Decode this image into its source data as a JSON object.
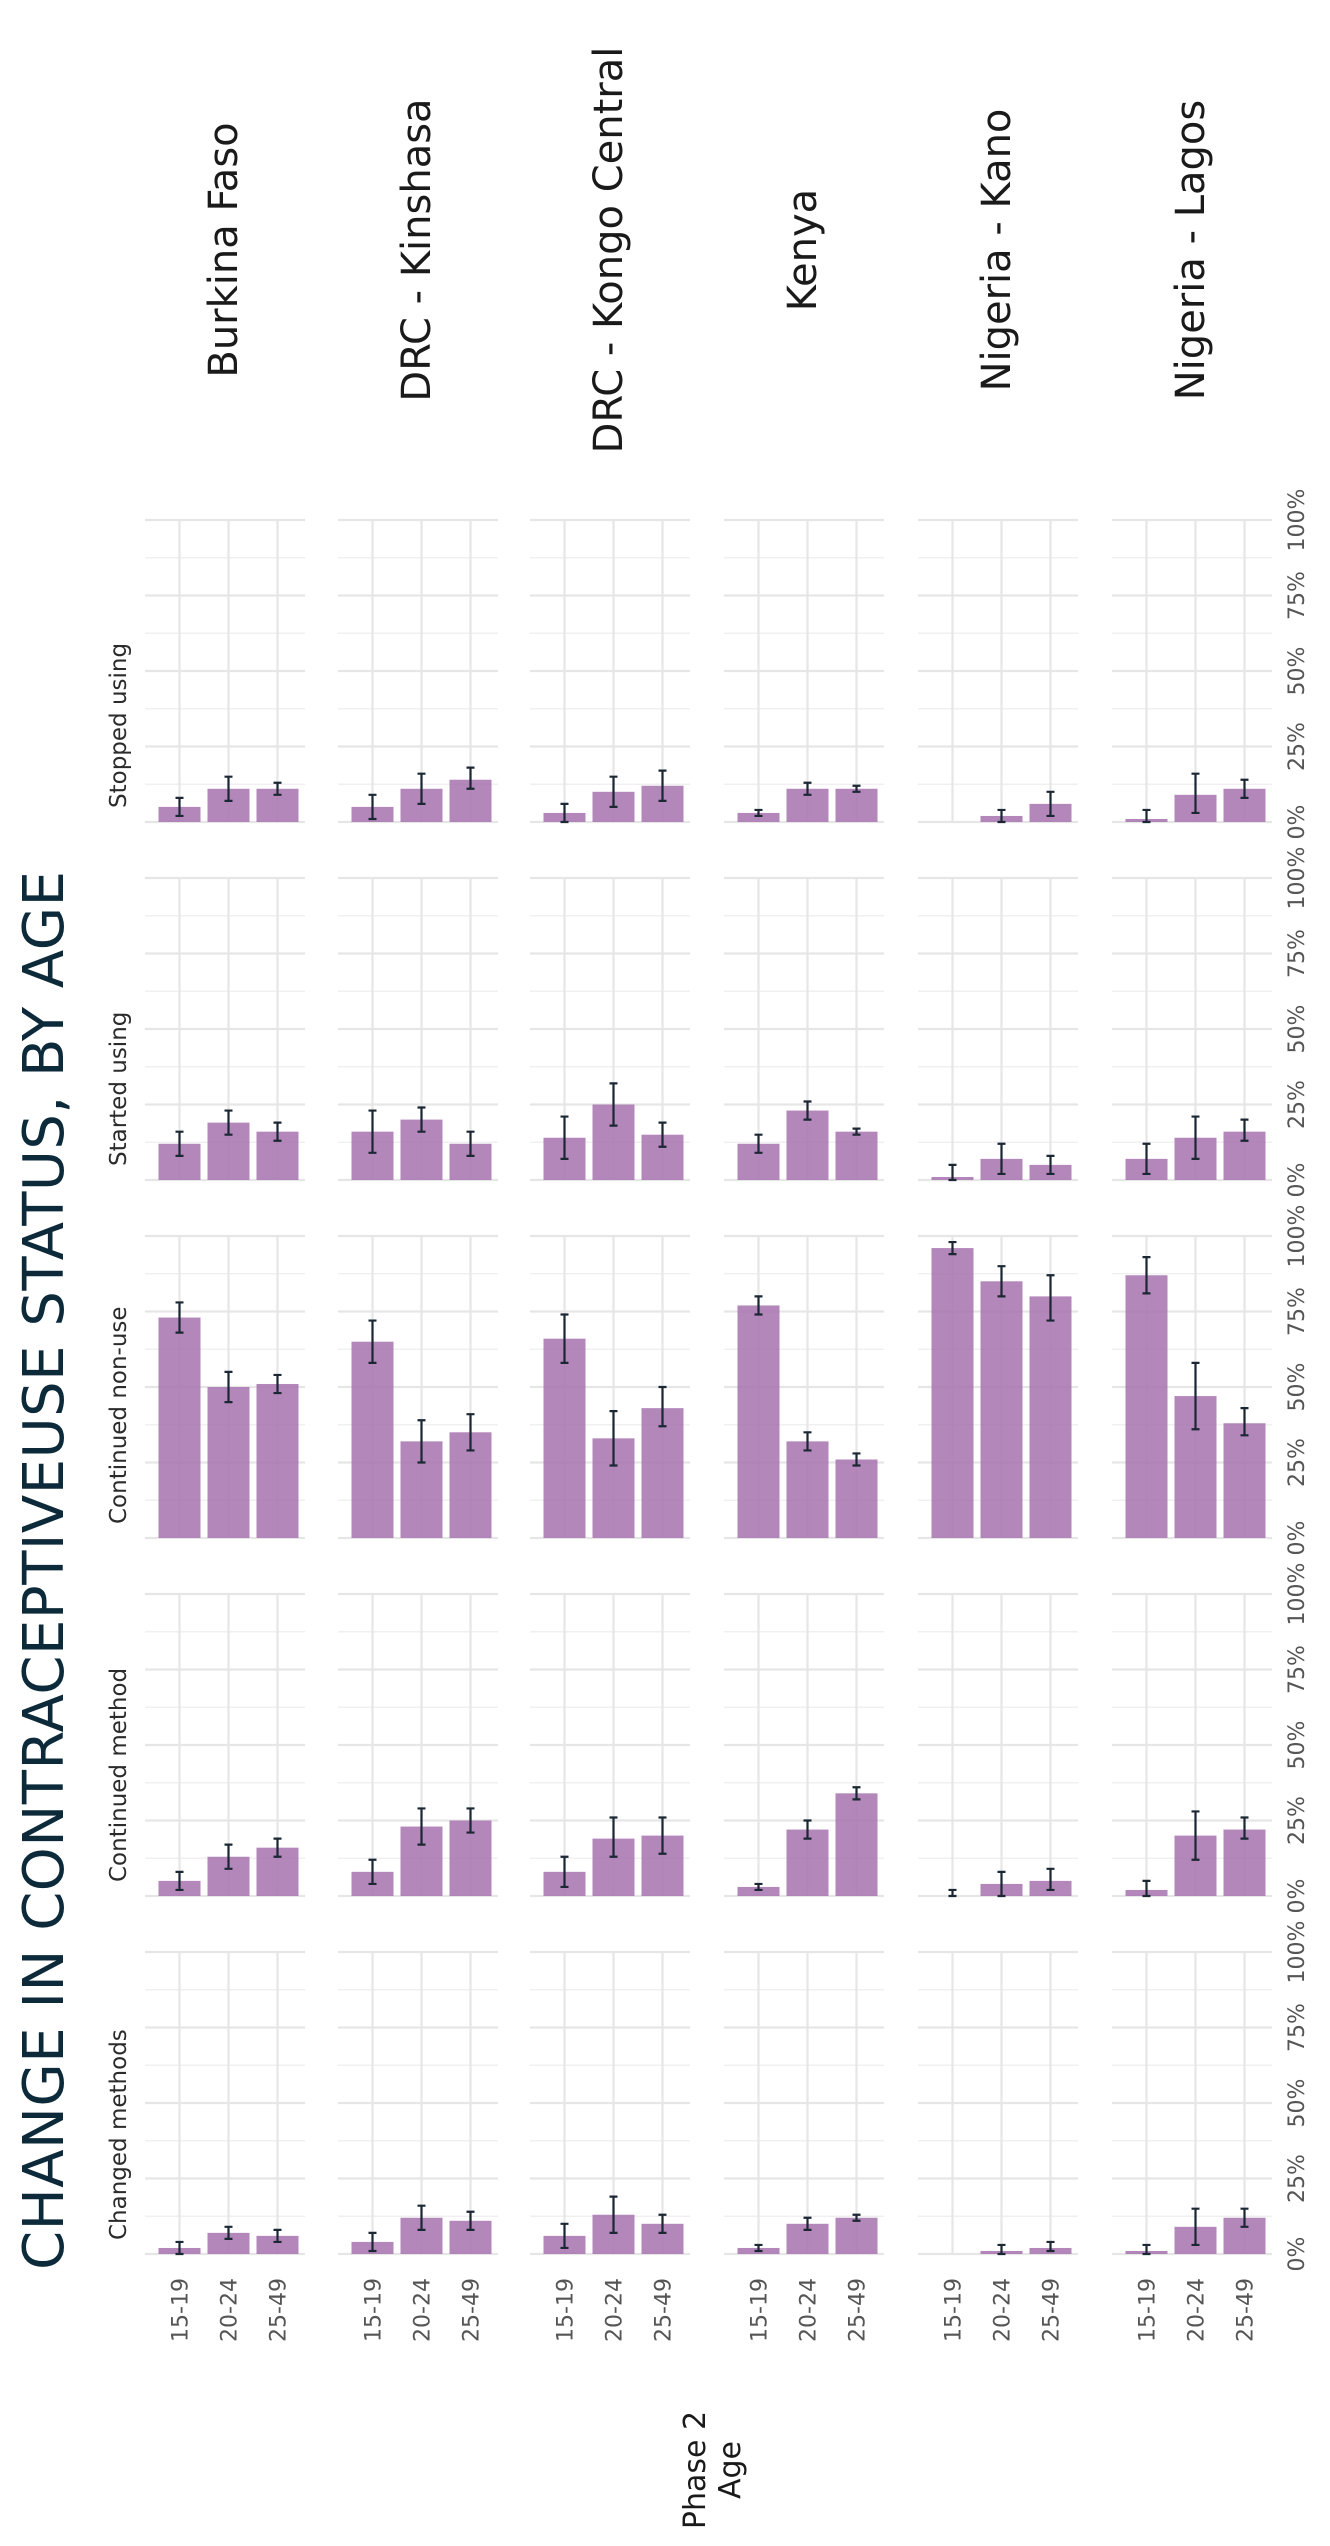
{
  "title": "CHANGE IN CONTRACEPTIVEUSE STATUS, BY AGE",
  "axis_title_phase": "Phase 2",
  "axis_title_age": "Age",
  "colors": {
    "bar": "#a672ae",
    "error_bar": "#1b2733",
    "title": "#0d2a3a",
    "grid": "#e6e6e6"
  },
  "chart_data": {
    "type": "bar",
    "orientation": "rotated-90",
    "facets": {
      "countries": [
        "Burkina Faso",
        "DRC - Kinshasa",
        "DRC - Kongo Central",
        "Kenya",
        "Nigeria - Kano",
        "Nigeria - Lagos"
      ],
      "statuses": [
        "Stopped using",
        "Started using",
        "Continued non-use",
        "Continued method",
        "Changed methods"
      ]
    },
    "categories": [
      "15-19",
      "20-24",
      "25-49"
    ],
    "value_axis": {
      "ticks": [
        "0%",
        "25%",
        "50%",
        "75%",
        "100%"
      ],
      "range": [
        0,
        100
      ],
      "unit": "%"
    },
    "grid": true,
    "panels": [
      {
        "country": "Burkina Faso",
        "status": "Stopped using",
        "values": [
          5,
          11,
          11
        ],
        "error": [
          [
            2,
            8
          ],
          [
            7,
            15
          ],
          [
            9,
            13
          ]
        ]
      },
      {
        "country": "Burkina Faso",
        "status": "Started using",
        "values": [
          12,
          19,
          16
        ],
        "error": [
          [
            8,
            16
          ],
          [
            15,
            23
          ],
          [
            13,
            19
          ]
        ]
      },
      {
        "country": "Burkina Faso",
        "status": "Continued non-use",
        "values": [
          73,
          50,
          51
        ],
        "error": [
          [
            68,
            78
          ],
          [
            45,
            55
          ],
          [
            48,
            54
          ]
        ]
      },
      {
        "country": "Burkina Faso",
        "status": "Continued method",
        "values": [
          5,
          13,
          16
        ],
        "error": [
          [
            2,
            8
          ],
          [
            9,
            17
          ],
          [
            13,
            19
          ]
        ]
      },
      {
        "country": "Burkina Faso",
        "status": "Changed methods",
        "values": [
          2,
          7,
          6
        ],
        "error": [
          [
            0,
            4
          ],
          [
            5,
            9
          ],
          [
            4,
            8
          ]
        ]
      },
      {
        "country": "DRC - Kinshasa",
        "status": "Stopped using",
        "values": [
          5,
          11,
          14
        ],
        "error": [
          [
            1,
            9
          ],
          [
            6,
            16
          ],
          [
            11,
            18
          ]
        ]
      },
      {
        "country": "DRC - Kinshasa",
        "status": "Started using",
        "values": [
          16,
          20,
          12
        ],
        "error": [
          [
            9,
            23
          ],
          [
            16,
            24
          ],
          [
            8,
            16
          ]
        ]
      },
      {
        "country": "DRC - Kinshasa",
        "status": "Continued non-use",
        "values": [
          65,
          32,
          35
        ],
        "error": [
          [
            58,
            72
          ],
          [
            25,
            39
          ],
          [
            29,
            41
          ]
        ]
      },
      {
        "country": "DRC - Kinshasa",
        "status": "Continued method",
        "values": [
          8,
          23,
          25
        ],
        "error": [
          [
            4,
            12
          ],
          [
            17,
            29
          ],
          [
            21,
            29
          ]
        ]
      },
      {
        "country": "DRC - Kinshasa",
        "status": "Changed methods",
        "values": [
          4,
          12,
          11
        ],
        "error": [
          [
            1,
            7
          ],
          [
            8,
            16
          ],
          [
            8,
            14
          ]
        ]
      },
      {
        "country": "DRC - Kongo Central",
        "status": "Stopped using",
        "values": [
          3,
          10,
          12
        ],
        "error": [
          [
            0,
            6
          ],
          [
            5,
            15
          ],
          [
            7,
            17
          ]
        ]
      },
      {
        "country": "DRC - Kongo Central",
        "status": "Started using",
        "values": [
          14,
          25,
          15
        ],
        "error": [
          [
            7,
            21
          ],
          [
            18,
            32
          ],
          [
            11,
            19
          ]
        ]
      },
      {
        "country": "DRC - Kongo Central",
        "status": "Continued non-use",
        "values": [
          66,
          33,
          43
        ],
        "error": [
          [
            58,
            74
          ],
          [
            24,
            42
          ],
          [
            37,
            50
          ]
        ]
      },
      {
        "country": "DRC - Kongo Central",
        "status": "Continued method",
        "values": [
          8,
          19,
          20
        ],
        "error": [
          [
            3,
            13
          ],
          [
            13,
            26
          ],
          [
            14,
            26
          ]
        ]
      },
      {
        "country": "DRC - Kongo Central",
        "status": "Changed methods",
        "values": [
          6,
          13,
          10
        ],
        "error": [
          [
            2,
            10
          ],
          [
            7,
            19
          ],
          [
            7,
            13
          ]
        ]
      },
      {
        "country": "Kenya",
        "status": "Stopped using",
        "values": [
          3,
          11,
          11
        ],
        "error": [
          [
            2,
            4
          ],
          [
            9,
            13
          ],
          [
            10,
            12
          ]
        ]
      },
      {
        "country": "Kenya",
        "status": "Started using",
        "values": [
          12,
          23,
          16
        ],
        "error": [
          [
            9,
            15
          ],
          [
            20,
            26
          ],
          [
            15,
            17
          ]
        ]
      },
      {
        "country": "Kenya",
        "status": "Continued non-use",
        "values": [
          77,
          32,
          26
        ],
        "error": [
          [
            74,
            80
          ],
          [
            29,
            35
          ],
          [
            24,
            28
          ]
        ]
      },
      {
        "country": "Kenya",
        "status": "Continued method",
        "values": [
          3,
          22,
          34
        ],
        "error": [
          [
            2,
            4
          ],
          [
            19,
            25
          ],
          [
            32,
            36
          ]
        ]
      },
      {
        "country": "Kenya",
        "status": "Changed methods",
        "values": [
          2,
          10,
          12
        ],
        "error": [
          [
            1,
            3
          ],
          [
            8,
            12
          ],
          [
            11,
            13
          ]
        ]
      },
      {
        "country": "Nigeria - Kano",
        "status": "Stopped using",
        "values": [
          0,
          2,
          6
        ],
        "error": [
          [
            0,
            0
          ],
          [
            0,
            4
          ],
          [
            2,
            10
          ]
        ]
      },
      {
        "country": "Nigeria - Kano",
        "status": "Started using",
        "values": [
          1,
          7,
          5
        ],
        "error": [
          [
            0,
            5
          ],
          [
            2,
            12
          ],
          [
            2,
            8
          ]
        ]
      },
      {
        "country": "Nigeria - Kano",
        "status": "Continued non-use",
        "values": [
          96,
          85,
          80
        ],
        "error": [
          [
            94,
            98
          ],
          [
            80,
            90
          ],
          [
            72,
            87
          ]
        ]
      },
      {
        "country": "Nigeria - Kano",
        "status": "Continued method",
        "values": [
          0,
          4,
          5
        ],
        "error": [
          [
            0,
            2
          ],
          [
            0,
            8
          ],
          [
            2,
            9
          ]
        ]
      },
      {
        "country": "Nigeria - Kano",
        "status": "Changed methods",
        "values": [
          0,
          1,
          2
        ],
        "error": [
          [
            0,
            0
          ],
          [
            0,
            3
          ],
          [
            1,
            4
          ]
        ]
      },
      {
        "country": "Nigeria - Lagos",
        "status": "Stopped using",
        "values": [
          1,
          9,
          11
        ],
        "error": [
          [
            0,
            4
          ],
          [
            3,
            16
          ],
          [
            8,
            14
          ]
        ]
      },
      {
        "country": "Nigeria - Lagos",
        "status": "Started using",
        "values": [
          7,
          14,
          16
        ],
        "error": [
          [
            2,
            12
          ],
          [
            7,
            21
          ],
          [
            13,
            20
          ]
        ]
      },
      {
        "country": "Nigeria - Lagos",
        "status": "Continued non-use",
        "values": [
          87,
          47,
          38
        ],
        "error": [
          [
            81,
            93
          ],
          [
            36,
            58
          ],
          [
            34,
            43
          ]
        ]
      },
      {
        "country": "Nigeria - Lagos",
        "status": "Continued method",
        "values": [
          2,
          20,
          22
        ],
        "error": [
          [
            0,
            5
          ],
          [
            12,
            28
          ],
          [
            19,
            26
          ]
        ]
      },
      {
        "country": "Nigeria - Lagos",
        "status": "Changed methods",
        "values": [
          1,
          9,
          12
        ],
        "error": [
          [
            0,
            3
          ],
          [
            3,
            15
          ],
          [
            9,
            15
          ]
        ]
      }
    ]
  }
}
